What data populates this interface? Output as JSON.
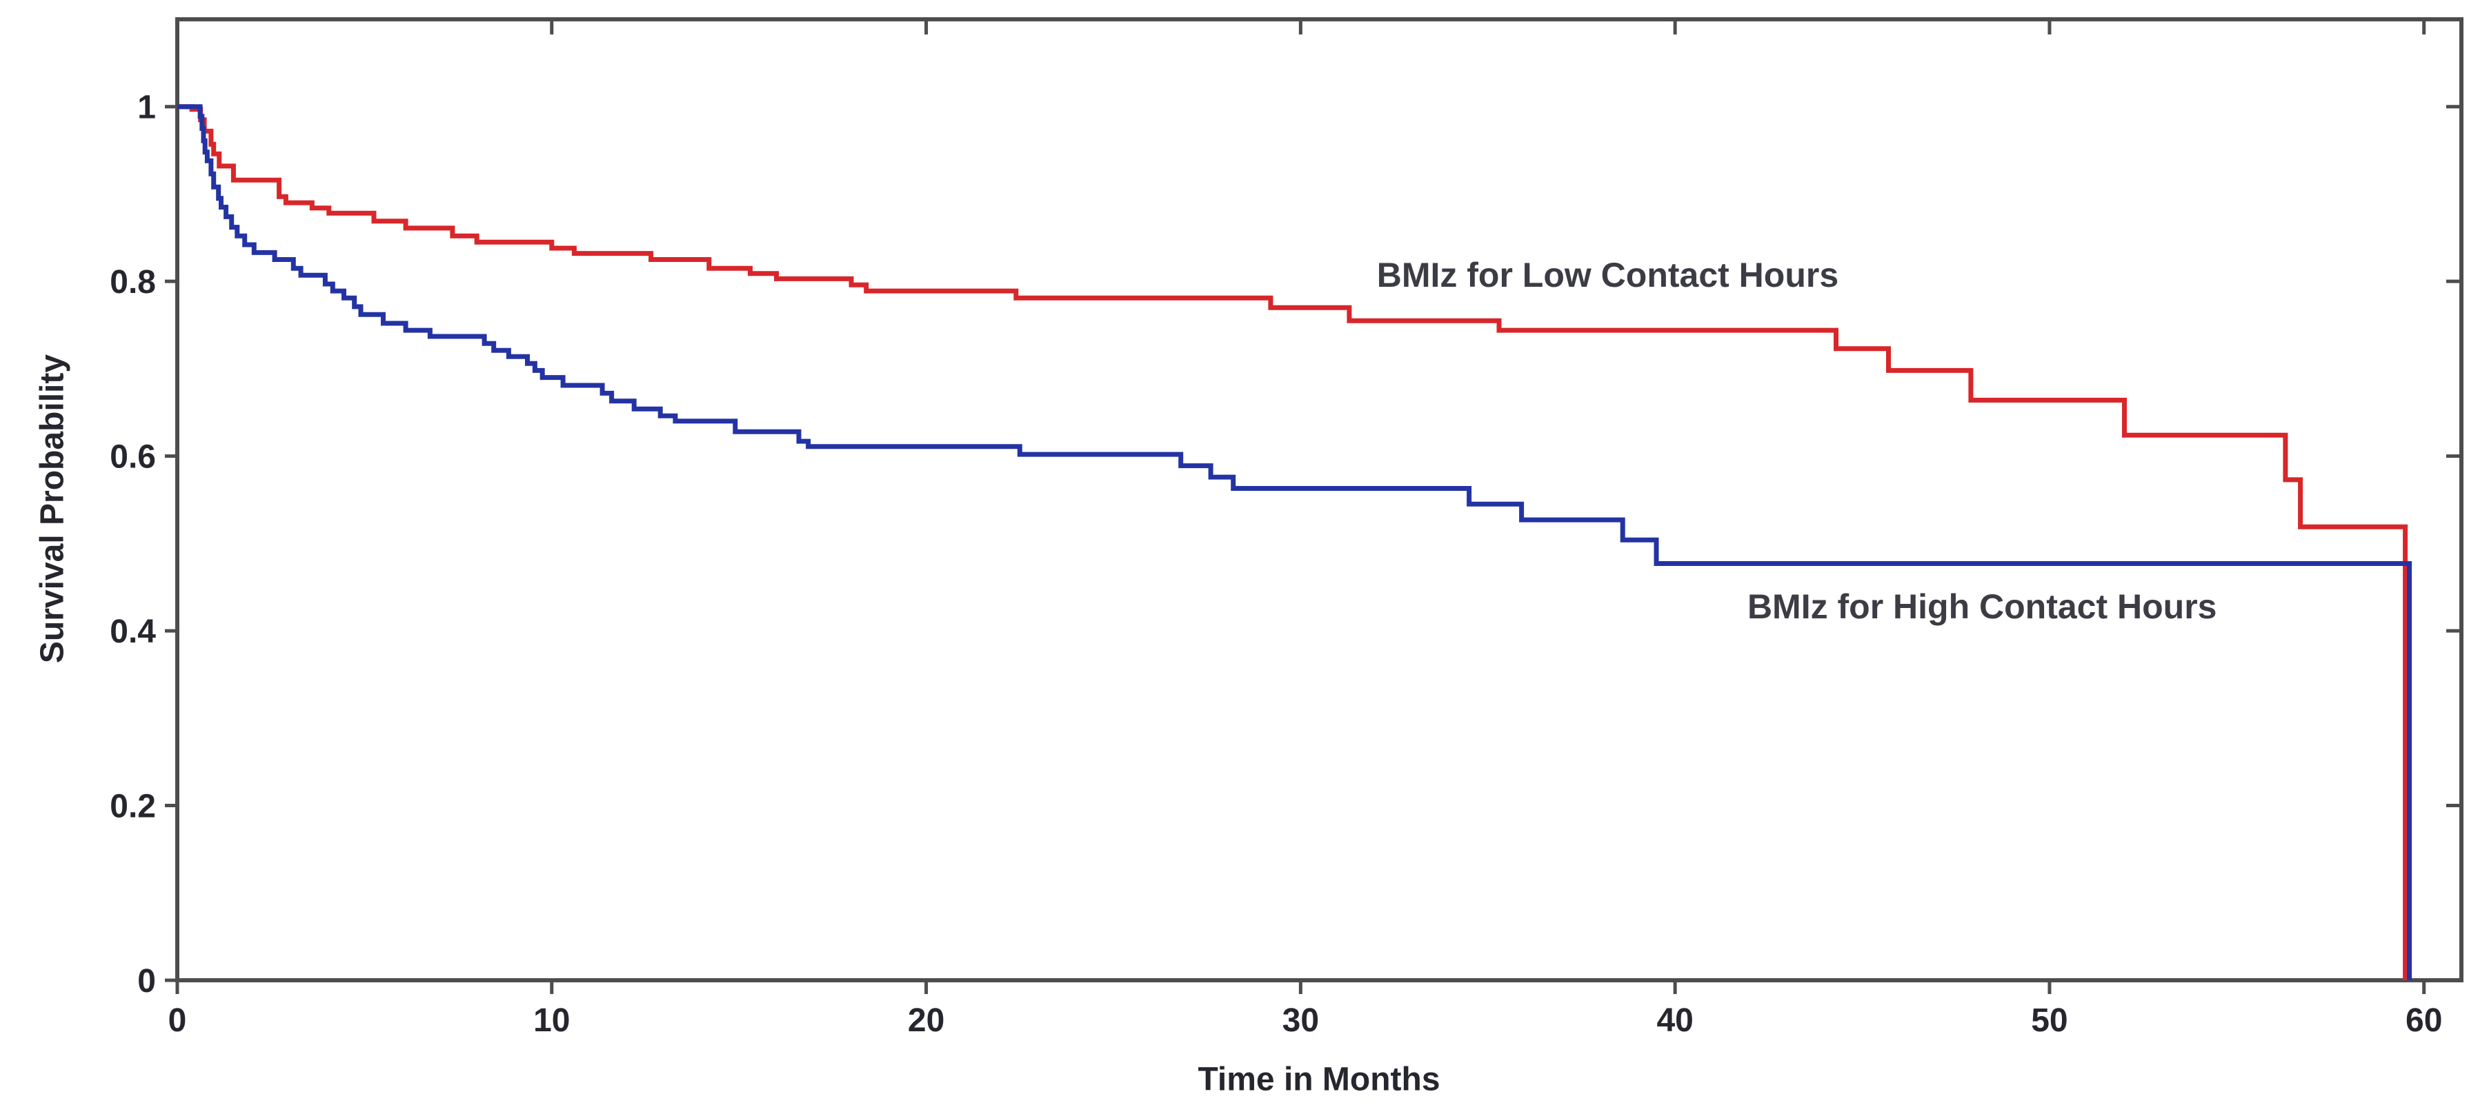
{
  "figure": {
    "background": "#ffffff"
  },
  "chart_data": {
    "type": "line",
    "subtype": "kaplan-meier-step-survival",
    "title": "",
    "xlabel": "Time in Months",
    "ylabel": "Survival Probability",
    "xlim": [
      0,
      61
    ],
    "ylim": [
      0,
      1.1
    ],
    "x_ticks": {
      "values": [
        0,
        10,
        20,
        30,
        40,
        50,
        60
      ],
      "labels": [
        "0",
        "10",
        "20",
        "30",
        "40",
        "50",
        "60"
      ]
    },
    "y_ticks": {
      "values": [
        0,
        0.2,
        0.4,
        0.6,
        0.8,
        1
      ],
      "labels": [
        "0",
        "0.2",
        "0.4",
        "0.6",
        "0.8",
        "1"
      ]
    },
    "grid": false,
    "legend_position": "none-inline-curve-labels",
    "axis_color": "#4d4d4d",
    "tick_label_color": "#26262e",
    "annotation_color": "#3c3c45",
    "series": [
      {
        "name": "BMIz for Low Contact Hours",
        "color": "#d8262a",
        "step": true,
        "points": [
          [
            0,
            1.0
          ],
          [
            0.39,
            0.997
          ],
          [
            0.62,
            0.985
          ],
          [
            0.72,
            0.972
          ],
          [
            0.9,
            0.957
          ],
          [
            0.97,
            0.946
          ],
          [
            1.12,
            0.932
          ],
          [
            1.5,
            0.916
          ],
          [
            2.72,
            0.897
          ],
          [
            2.9,
            0.89
          ],
          [
            3.6,
            0.884
          ],
          [
            4.05,
            0.878
          ],
          [
            5.25,
            0.869
          ],
          [
            6.1,
            0.861
          ],
          [
            7.35,
            0.852
          ],
          [
            8.0,
            0.845
          ],
          [
            10.0,
            0.838
          ],
          [
            10.6,
            0.832
          ],
          [
            12.65,
            0.825
          ],
          [
            14.2,
            0.815
          ],
          [
            15.3,
            0.809
          ],
          [
            16.0,
            0.803
          ],
          [
            18.0,
            0.796
          ],
          [
            18.4,
            0.789
          ],
          [
            22.4,
            0.781
          ],
          [
            29.2,
            0.77
          ],
          [
            31.3,
            0.755
          ],
          [
            35.3,
            0.744
          ],
          [
            44.3,
            0.723
          ],
          [
            45.7,
            0.698
          ],
          [
            47.9,
            0.664
          ],
          [
            52.0,
            0.624
          ],
          [
            56.3,
            0.573
          ],
          [
            56.7,
            0.519
          ],
          [
            59.5,
            0
          ]
        ]
      },
      {
        "name": "BMIz for High Contact Hours",
        "color": "#2433a4",
        "step": true,
        "points": [
          [
            0,
            1.0
          ],
          [
            0.61,
            0.989
          ],
          [
            0.66,
            0.975
          ],
          [
            0.7,
            0.961
          ],
          [
            0.74,
            0.948
          ],
          [
            0.8,
            0.938
          ],
          [
            0.9,
            0.923
          ],
          [
            0.97,
            0.908
          ],
          [
            1.1,
            0.895
          ],
          [
            1.17,
            0.885
          ],
          [
            1.3,
            0.874
          ],
          [
            1.45,
            0.862
          ],
          [
            1.6,
            0.852
          ],
          [
            1.8,
            0.842
          ],
          [
            2.05,
            0.833
          ],
          [
            2.6,
            0.825
          ],
          [
            3.1,
            0.815
          ],
          [
            3.3,
            0.807
          ],
          [
            3.95,
            0.797
          ],
          [
            4.15,
            0.789
          ],
          [
            4.45,
            0.781
          ],
          [
            4.73,
            0.771
          ],
          [
            4.9,
            0.762
          ],
          [
            5.5,
            0.752
          ],
          [
            6.1,
            0.744
          ],
          [
            6.75,
            0.737
          ],
          [
            8.2,
            0.729
          ],
          [
            8.45,
            0.721
          ],
          [
            8.85,
            0.714
          ],
          [
            9.35,
            0.706
          ],
          [
            9.55,
            0.698
          ],
          [
            9.75,
            0.69
          ],
          [
            10.3,
            0.681
          ],
          [
            11.35,
            0.672
          ],
          [
            11.6,
            0.663
          ],
          [
            12.2,
            0.654
          ],
          [
            12.9,
            0.646
          ],
          [
            13.3,
            0.64
          ],
          [
            14.9,
            0.628
          ],
          [
            16.6,
            0.617
          ],
          [
            16.85,
            0.611
          ],
          [
            22.5,
            0.602
          ],
          [
            26.8,
            0.589
          ],
          [
            27.6,
            0.576
          ],
          [
            28.2,
            0.563
          ],
          [
            34.5,
            0.545
          ],
          [
            35.9,
            0.527
          ],
          [
            38.6,
            0.504
          ],
          [
            39.5,
            0.477
          ],
          [
            59.61,
            0
          ]
        ]
      }
    ],
    "annotations": [
      {
        "text": "BMIz for Low Contact Hours",
        "t": 38.2,
        "s": 0.807
      },
      {
        "text": "BMIz for High Contact Hours",
        "t": 48.2,
        "s": 0.428
      }
    ]
  }
}
